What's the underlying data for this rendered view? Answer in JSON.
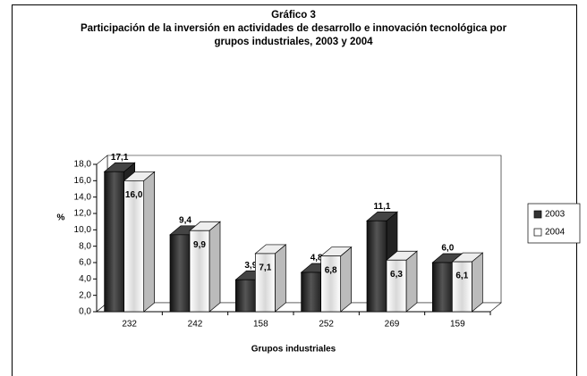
{
  "chart_data": {
    "type": "bar3d",
    "title": "Gráfico 3",
    "subtitle": "Participación de la inversión en actividades de desarrollo e innovación tecnológica por grupos industriales, 2003 y 2004",
    "y_label": "%",
    "x_label": "Grupos industriales",
    "categories": [
      "232",
      "242",
      "158",
      "252",
      "269",
      "159"
    ],
    "series": [
      {
        "name": "2003",
        "color": "#333333",
        "values": [
          17.1,
          9.4,
          3.9,
          4.8,
          11.1,
          6.0
        ],
        "value_labels": [
          "17,1",
          "9,4",
          "3,9",
          "4,8",
          "11,1",
          "6,0"
        ]
      },
      {
        "name": "2004",
        "color": "#ffffff",
        "values": [
          16.0,
          9.9,
          7.1,
          6.8,
          6.3,
          6.1
        ],
        "value_labels": [
          "16,0",
          "9,9",
          "7,1",
          "6,8",
          "6,3",
          "6,1"
        ]
      }
    ],
    "ylim": [
      0,
      18
    ],
    "yticks": [
      {
        "value": 0,
        "label": "0,0"
      },
      {
        "value": 2,
        "label": "2,0"
      },
      {
        "value": 4,
        "label": "4,0"
      },
      {
        "value": 6,
        "label": "6,0"
      },
      {
        "value": 8,
        "label": "8,0"
      },
      {
        "value": 10,
        "label": "10,0"
      },
      {
        "value": 12,
        "label": "12,0"
      },
      {
        "value": 14,
        "label": "14,0"
      },
      {
        "value": 16,
        "label": "16,0"
      },
      {
        "value": 18,
        "label": "18,0"
      }
    ],
    "legend": "right"
  }
}
